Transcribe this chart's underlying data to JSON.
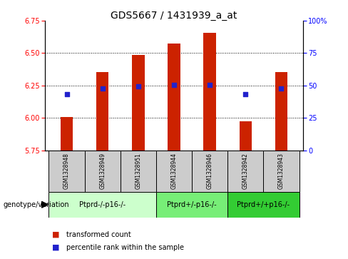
{
  "title": "GDS5667 / 1431939_a_at",
  "samples": [
    "GSM1328948",
    "GSM1328949",
    "GSM1328951",
    "GSM1328944",
    "GSM1328946",
    "GSM1328942",
    "GSM1328943"
  ],
  "bar_values": [
    6.005,
    6.355,
    6.485,
    6.575,
    6.655,
    5.975,
    6.355
  ],
  "percentile_values": [
    6.185,
    6.225,
    6.245,
    6.255,
    6.255,
    6.185,
    6.225
  ],
  "ylim": [
    5.75,
    6.75
  ],
  "yticks_left": [
    5.75,
    6.0,
    6.25,
    6.5,
    6.75
  ],
  "yticks_right": [
    0,
    25,
    50,
    75,
    100
  ],
  "bar_color": "#cc2200",
  "dot_color": "#2222cc",
  "bar_bottom": 5.75,
  "groups": [
    {
      "label": "Ptprd-/-p16-/-",
      "samples": [
        "GSM1328948",
        "GSM1328949",
        "GSM1328951"
      ],
      "color": "#ccffcc"
    },
    {
      "label": "Ptprd+/-p16-/-",
      "samples": [
        "GSM1328944",
        "GSM1328946"
      ],
      "color": "#77ee77"
    },
    {
      "label": "Ptprd+/+p16-/-",
      "samples": [
        "GSM1328942",
        "GSM1328943"
      ],
      "color": "#33cc33"
    }
  ],
  "legend_bar_label": "transformed count",
  "legend_dot_label": "percentile rank within the sample",
  "genotype_label": "genotype/variation",
  "sample_box_color": "#cccccc",
  "title_fontsize": 10,
  "tick_fontsize": 7,
  "sample_fontsize": 5.5,
  "group_fontsize": 7,
  "legend_fontsize": 7,
  "genotype_fontsize": 7
}
